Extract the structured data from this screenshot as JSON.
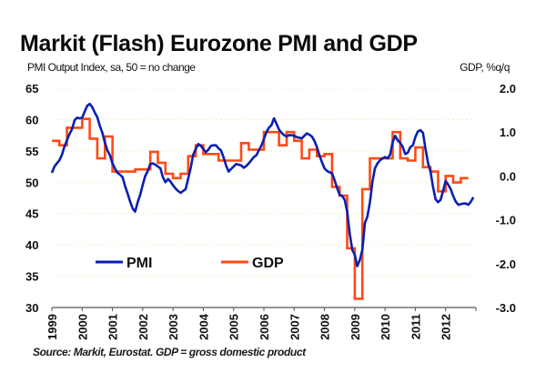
{
  "title": "Markit (Flash) Eurozone PMI and GDP",
  "left_axis_label": "PMI Output Index, sa, 50 = no change",
  "right_axis_label": "GDP, %q/q",
  "source": "Source: Markit, Eurostat. GDP = gross domestic product",
  "colors": {
    "pmi": "#0a1fb0",
    "gdp": "#ff4a14",
    "grid": "#f1efc4",
    "axis": "#555555"
  },
  "chart_data": {
    "type": "line",
    "title": "Markit (Flash) Eurozone PMI and GDP",
    "xlabel": "",
    "ylabel": "PMI Output Index, sa, 50 = no change",
    "y2label": "GDP, %q/q",
    "ylim": [
      30,
      65
    ],
    "y2lim": [
      -3.0,
      2.0
    ],
    "yticks": [
      "65",
      "60",
      "55",
      "50",
      "45",
      "40",
      "35",
      "30"
    ],
    "y2ticks": [
      "2.0",
      "1.0",
      "0.0",
      "-1.0",
      "-2.0",
      "-3.0"
    ],
    "xticks": [
      "1999",
      "2000",
      "2001",
      "2002",
      "2003",
      "2004",
      "2005",
      "2006",
      "2007",
      "2008",
      "2009",
      "2010",
      "2011",
      "2012"
    ],
    "xlim": [
      1999,
      2013
    ],
    "grid": true,
    "legend": [
      "PMI",
      "GDP"
    ],
    "legend_position": "bottom-left",
    "series": [
      {
        "name": "PMI",
        "axis": "left",
        "frequency": "monthly",
        "start": "1999-01",
        "values": [
          51.5,
          52.5,
          53.0,
          53.5,
          54.4,
          55.7,
          56.7,
          57.7,
          58.5,
          59.9,
          60.3,
          60.2,
          60.3,
          61.3,
          62.2,
          62.5,
          62.0,
          61.1,
          60.4,
          59.0,
          57.9,
          56.3,
          55.1,
          54.3,
          53.0,
          52.2,
          51.5,
          51.2,
          50.8,
          49.4,
          48.2,
          46.9,
          45.8,
          45.3,
          46.8,
          48.0,
          49.6,
          51.0,
          51.8,
          52.9,
          53.0,
          52.8,
          52.5,
          52.2,
          50.8,
          50.0,
          50.5,
          50.1,
          49.5,
          49.0,
          48.6,
          48.3,
          48.6,
          48.9,
          50.6,
          52.3,
          54.4,
          55.3,
          56.1,
          55.8,
          55.3,
          54.8,
          55.2,
          55.8,
          55.9,
          55.9,
          55.4,
          55.1,
          54.0,
          52.7,
          51.7,
          52.1,
          52.5,
          52.9,
          52.8,
          52.7,
          52.3,
          52.6,
          53.0,
          53.5,
          54.0,
          54.3,
          55.1,
          55.8,
          56.9,
          58.0,
          58.7,
          59.1,
          60.2,
          59.3,
          58.4,
          57.9,
          57.5,
          57.3,
          57.5,
          57.5,
          57.4,
          57.2,
          57.1,
          57.0,
          57.4,
          57.8,
          57.6,
          57.3,
          56.6,
          55.6,
          54.3,
          53.2,
          52.2,
          51.8,
          51.6,
          51.4,
          50.3,
          49.1,
          48.0,
          47.8,
          47.2,
          45.3,
          41.8,
          39.2,
          38.4,
          36.6,
          37.6,
          39.2,
          43.5,
          44.5,
          46.8,
          50.1,
          52.2,
          53.0,
          53.5,
          53.8,
          54.0,
          53.8,
          54.4,
          56.4,
          57.4,
          56.7,
          56.3,
          55.6,
          54.5,
          54.7,
          55.6,
          55.9,
          57.2,
          58.1,
          58.3,
          57.9,
          55.4,
          53.1,
          51.7,
          49.3,
          47.3,
          46.8,
          47.2,
          48.6,
          50.2,
          49.6,
          48.9,
          47.8,
          46.9,
          46.4,
          46.5,
          46.6,
          46.6,
          46.4,
          46.9,
          47.6
        ]
      },
      {
        "name": "GDP",
        "axis": "right",
        "frequency": "quarterly",
        "start": "1999-Q1",
        "values": [
          0.8,
          0.7,
          1.1,
          1.1,
          1.3,
          0.85,
          0.4,
          0.9,
          0.1,
          0.1,
          0.1,
          0.15,
          0.15,
          0.55,
          0.3,
          0.05,
          -0.05,
          0.05,
          0.45,
          0.7,
          0.5,
          0.5,
          0.35,
          0.35,
          0.35,
          0.75,
          0.6,
          0.6,
          1.0,
          1.0,
          0.7,
          1.0,
          0.8,
          0.4,
          0.6,
          0.45,
          0.5,
          -0.25,
          -0.45,
          -1.65,
          -2.8,
          -0.3,
          0.4,
          0.4,
          0.4,
          1.0,
          0.4,
          0.35,
          0.65,
          0.2,
          0.1,
          -0.35,
          0.0,
          -0.15,
          -0.05
        ]
      }
    ]
  }
}
